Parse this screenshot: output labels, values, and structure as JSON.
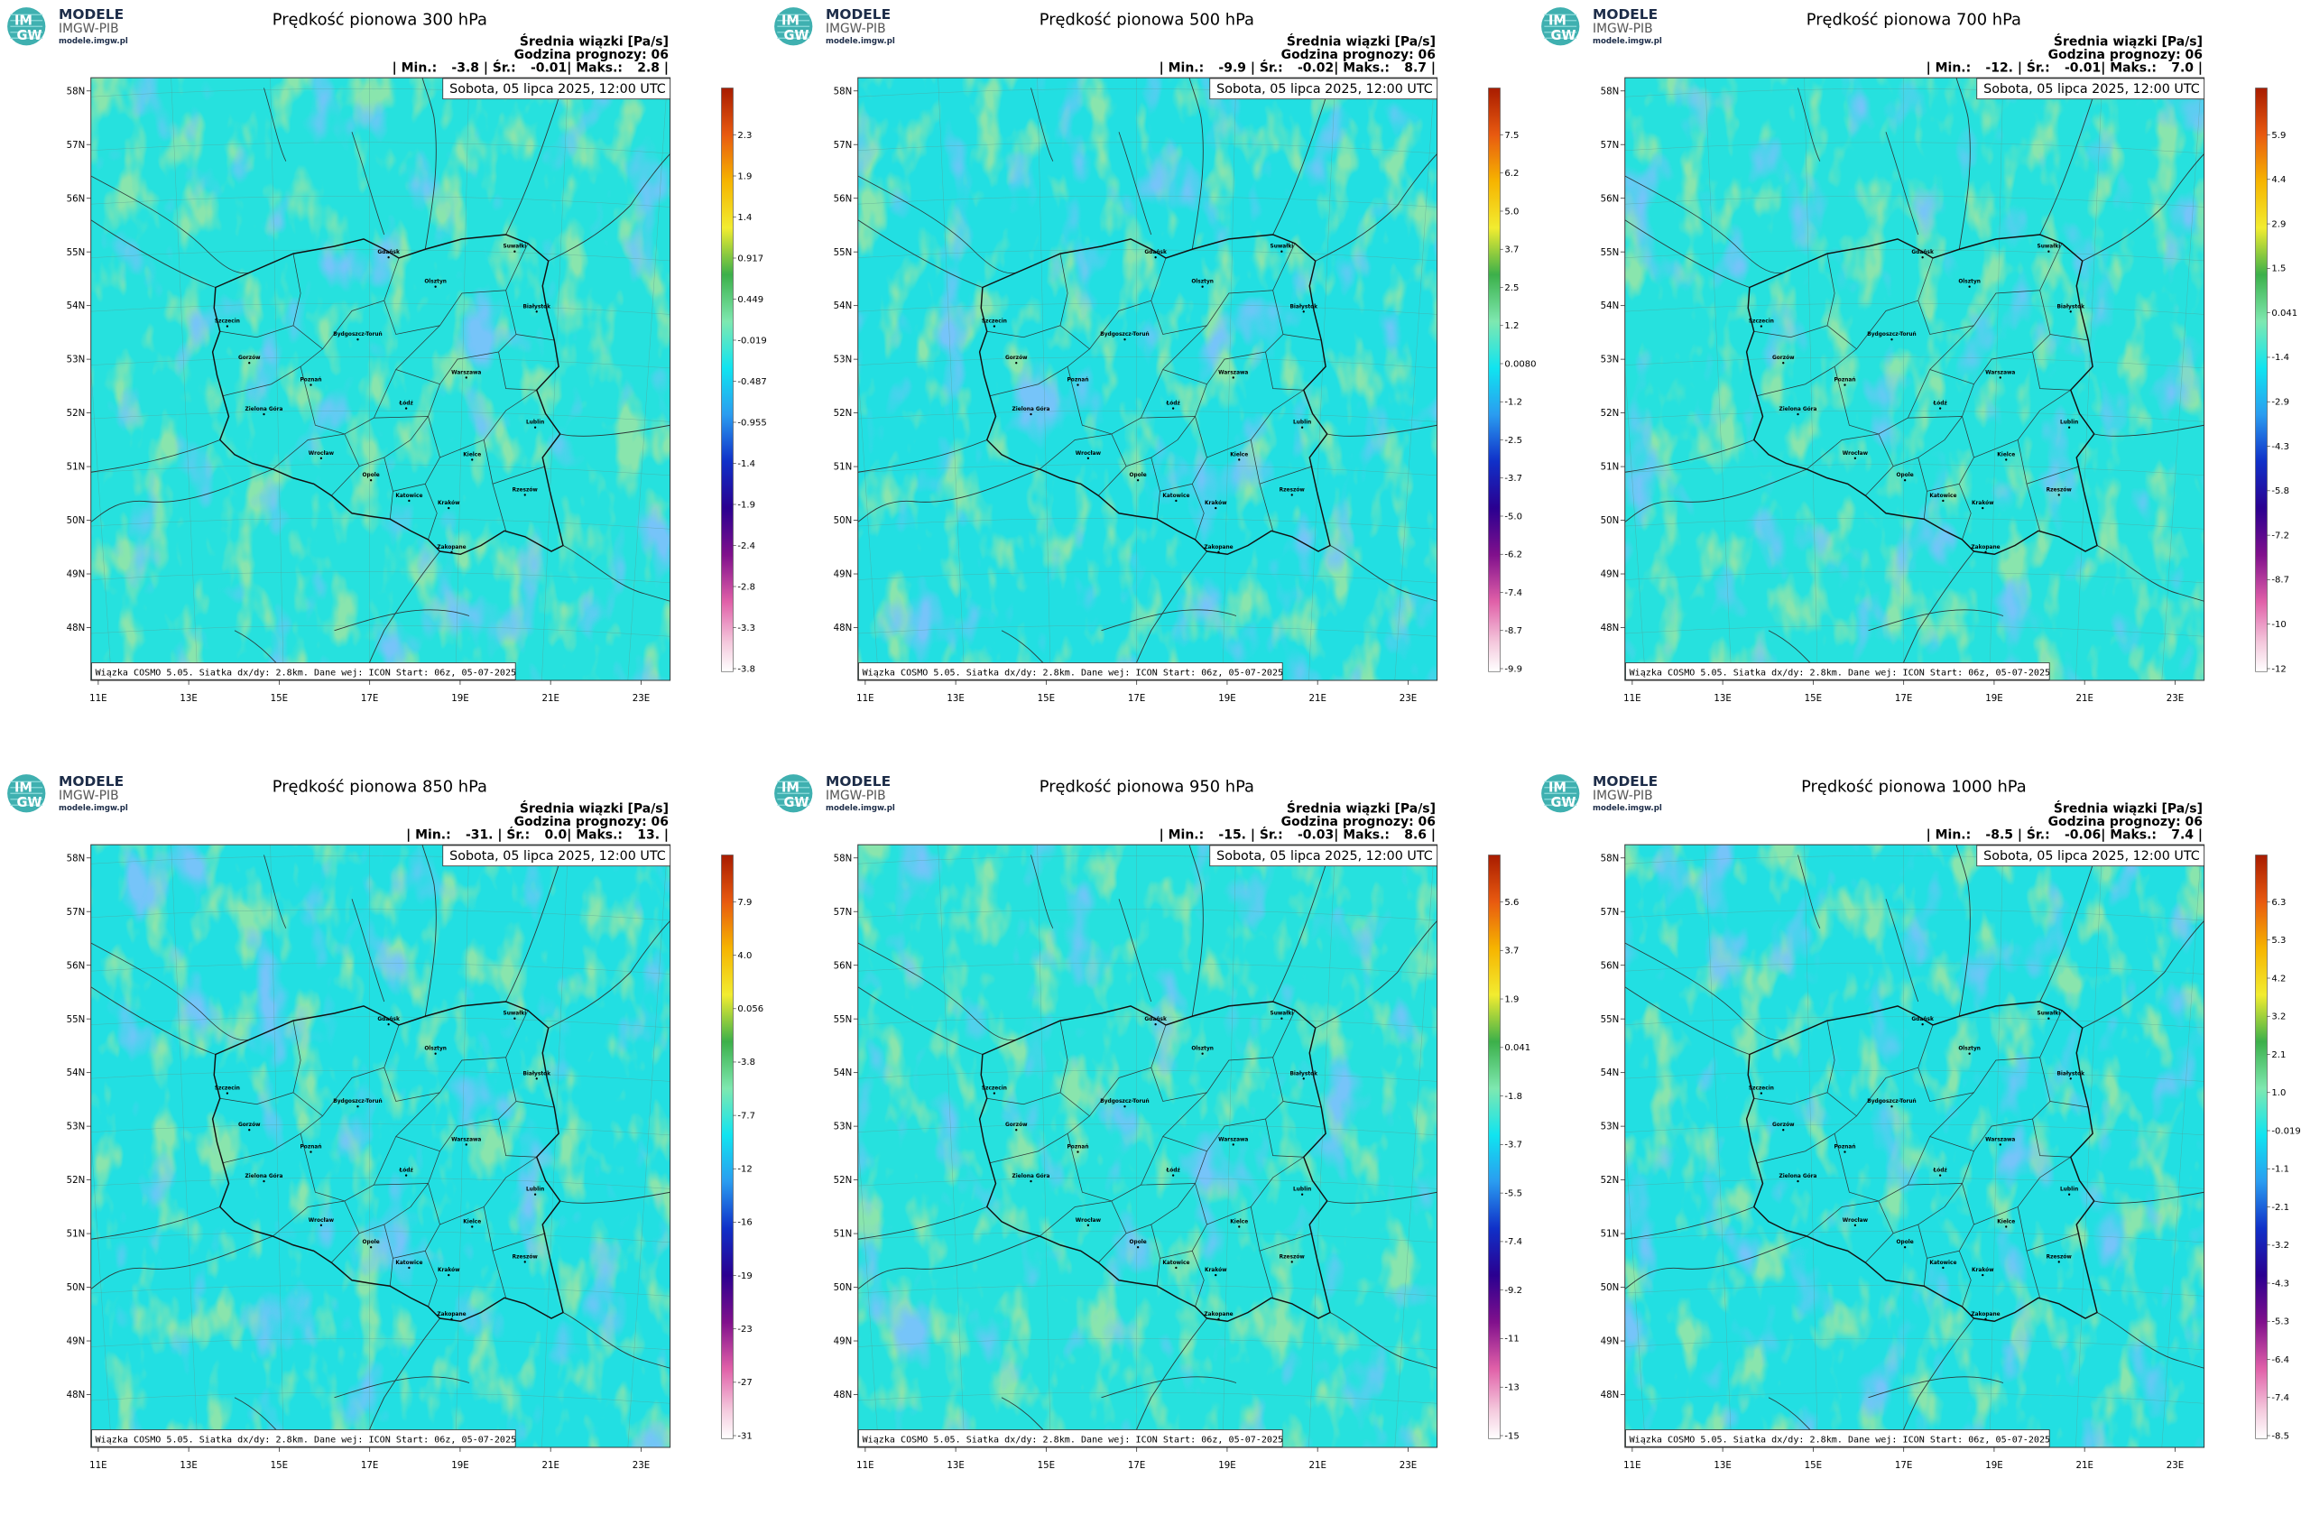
{
  "logo": {
    "mark_top": "IM",
    "mark_bottom": "GW",
    "name": "MODELE",
    "org": "IMGW-PIB",
    "url": "modele.imgw.pl"
  },
  "header": {
    "subtitle": "Średnia wiązki [Pa/s]",
    "forecast_hour": "Godzina prognozy: 06",
    "separator": "|",
    "min_label": "Min.:",
    "mean_label": "Śr.:",
    "max_label": "Maks.:",
    "date": "Sobota, 05 lipca 2025, 12:00 UTC",
    "footer": "Wiązka COSMO 5.05. Siatka dx/dy: 2.8km. Dane wej: ICON Start: 06z, 05-07-2025"
  },
  "lat_labels": [
    "58N",
    "57N",
    "56N",
    "55N",
    "54N",
    "53N",
    "52N",
    "51N",
    "50N",
    "49N",
    "48N"
  ],
  "lon_labels": [
    "11E",
    "13E",
    "15E",
    "17E",
    "19E",
    "21E",
    "23E"
  ],
  "cities": [
    "Gdańsk",
    "Suwałki",
    "Olsztyn",
    "Białystok",
    "Szczecin",
    "Bydgoszcz-Toruń",
    "Gorzów",
    "Poznań",
    "Warszawa",
    "Łódź",
    "Zielona Góra",
    "Lublin",
    "Wrocław",
    "Kielce",
    "Opole",
    "Rzeszów",
    "Katowice",
    "Kraków",
    "Zakopane"
  ],
  "panels": [
    {
      "title": "Prędkość pionowa 300 hPa",
      "min": "-3.8",
      "mean": "-0.01",
      "max": "2.8",
      "colorbar": [
        "2.3",
        "1.9",
        "1.4",
        "0.917",
        "0.449",
        "-0.019",
        "-0.487",
        "-0.955",
        "-1.4",
        "-1.9",
        "-2.4",
        "-2.8",
        "-3.3",
        "-3.8"
      ]
    },
    {
      "title": "Prędkość pionowa 500 hPa",
      "min": "-9.9",
      "mean": "-0.02",
      "max": "8.7",
      "colorbar": [
        "7.5",
        "6.2",
        "5.0",
        "3.7",
        "2.5",
        "1.2",
        "0.0080",
        "-1.2",
        "-2.5",
        "-3.7",
        "-5.0",
        "-6.2",
        "-7.4",
        "-8.7",
        "-9.9"
      ]
    },
    {
      "title": "Prędkość pionowa 700 hPa",
      "min": "-12.",
      "mean": "-0.01",
      "max": "7.0",
      "colorbar": [
        "5.9",
        "4.4",
        "2.9",
        "1.5",
        "0.041",
        "-1.4",
        "-2.9",
        "-4.3",
        "-5.8",
        "-7.2",
        "-8.7",
        "-10",
        "-12"
      ]
    },
    {
      "title": "Prędkość pionowa 850 hPa",
      "min": "-31.",
      "mean": "0.0",
      "max": "13.",
      "colorbar": [
        "7.9",
        "4.0",
        "0.056",
        "-3.8",
        "-7.7",
        "-12",
        "-16",
        "-19",
        "-23",
        "-27",
        "-31"
      ]
    },
    {
      "title": "Prędkość pionowa 950 hPa",
      "min": "-15.",
      "mean": "-0.03",
      "max": "8.6",
      "colorbar": [
        "5.6",
        "3.7",
        "1.9",
        "0.041",
        "-1.8",
        "-3.7",
        "-5.5",
        "-7.4",
        "-9.2",
        "-11",
        "-13",
        "-15"
      ]
    },
    {
      "title": "Prędkość pionowa 1000 hPa",
      "min": "-8.5",
      "mean": "-0.06",
      "max": "7.4",
      "colorbar": [
        "6.3",
        "5.3",
        "4.2",
        "3.2",
        "2.1",
        "1.0",
        "-0.019",
        "-1.1",
        "-2.1",
        "-3.2",
        "-4.3",
        "-5.3",
        "-6.4",
        "-7.4",
        "-8.5"
      ]
    }
  ]
}
